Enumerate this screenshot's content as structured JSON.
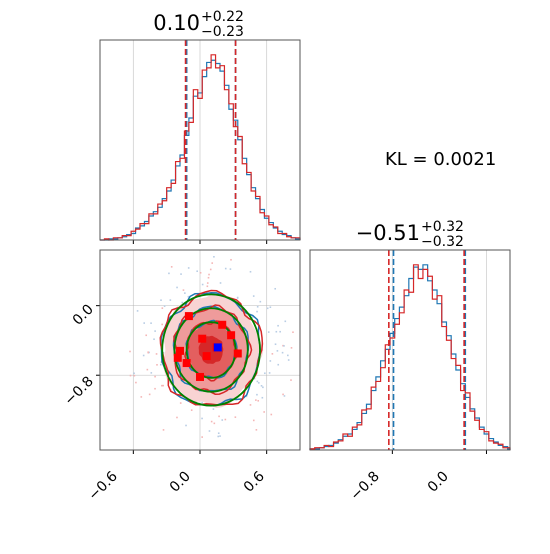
{
  "figure": {
    "kl_text": "KL = 0.0021"
  },
  "colors": {
    "blue_series": "#1f77b4",
    "red_series": "#d62728",
    "green_contour": "#008000",
    "grid": "#b0b0b0"
  },
  "chart_data": [
    {
      "type": "histogram",
      "panel": "marginal-param-1",
      "title_value": "0.10",
      "title_upper": "+0.22",
      "title_lower": "−0.23",
      "xlim": [
        -0.9,
        0.9
      ],
      "grid": true,
      "quantile_lines": {
        "red": [
          -0.13,
          0.1,
          0.32
        ],
        "blue": [
          -0.12,
          0.1,
          0.32
        ]
      },
      "bins": [
        -0.9,
        -0.86,
        -0.82,
        -0.78,
        -0.74,
        -0.7,
        -0.66,
        -0.62,
        -0.58,
        -0.54,
        -0.5,
        -0.46,
        -0.42,
        -0.38,
        -0.34,
        -0.3,
        -0.26,
        -0.22,
        -0.18,
        -0.14,
        -0.1,
        -0.06,
        -0.02,
        0.02,
        0.06,
        0.1,
        0.14,
        0.18,
        0.22,
        0.26,
        0.3,
        0.34,
        0.38,
        0.42,
        0.46,
        0.5,
        0.54,
        0.58,
        0.62,
        0.66,
        0.7,
        0.74,
        0.78,
        0.82,
        0.86,
        0.9
      ],
      "series": [
        {
          "color": "#1f77b4",
          "counts": [
            0,
            0,
            1,
            1,
            2,
            3,
            5,
            6,
            11,
            13,
            17,
            22,
            26,
            30,
            38,
            45,
            55,
            68,
            78,
            96,
            112,
            132,
            135,
            150,
            163,
            165,
            162,
            155,
            142,
            120,
            110,
            92,
            75,
            60,
            48,
            38,
            28,
            20,
            16,
            11,
            8,
            5,
            4,
            2,
            1
          ]
        },
        {
          "color": "#d62728",
          "counts": [
            0,
            1,
            0,
            2,
            2,
            4,
            4,
            8,
            10,
            15,
            15,
            24,
            24,
            33,
            36,
            48,
            52,
            72,
            75,
            100,
            108,
            138,
            130,
            156,
            158,
            170,
            158,
            160,
            138,
            125,
            104,
            95,
            70,
            62,
            45,
            40,
            25,
            22,
            14,
            12,
            6,
            6,
            3,
            2,
            2
          ]
        }
      ]
    },
    {
      "type": "contour",
      "panel": "joint-param-1-param-2",
      "xlim": [
        -0.9,
        0.9
      ],
      "ylim": [
        -1.66,
        0.64
      ],
      "grid": true,
      "x_ticks": [
        "−0.6",
        "0.0",
        "0.6"
      ],
      "y_ticks": [
        "0.0",
        "−0.8"
      ],
      "center": [
        0.1,
        -0.51
      ],
      "sigma": [
        0.22,
        0.32
      ],
      "level_scales": [
        0.5,
        1.0,
        1.5,
        2.0
      ],
      "fill_colors": [
        "#d62728",
        "#e35f5f",
        "#ef9b9b",
        "#f8d3d3"
      ],
      "red_markers": [
        [
          -0.1,
          -0.12
        ],
        [
          0.2,
          -0.22
        ],
        [
          0.02,
          -0.38
        ],
        [
          0.28,
          -0.34
        ],
        [
          -0.18,
          -0.52
        ],
        [
          0.06,
          -0.58
        ],
        [
          0.34,
          -0.55
        ],
        [
          -0.12,
          -0.66
        ],
        [
          0.15,
          -0.48
        ],
        [
          0.0,
          -0.82
        ],
        [
          -0.2,
          -0.6
        ]
      ],
      "blue_marker": [
        0.16,
        -0.48
      ]
    },
    {
      "type": "histogram",
      "panel": "marginal-param-2",
      "title_value": "−0.51",
      "title_upper": "+0.32",
      "title_lower": "−0.32",
      "xlim": [
        -1.5,
        0.2
      ],
      "grid": true,
      "x_ticks": [
        "−0.8",
        "0.0"
      ],
      "quantile_lines": {
        "red": [
          -0.83,
          -0.51,
          -0.19
        ],
        "blue": [
          -0.79,
          -0.51,
          -0.18
        ]
      },
      "bins": [
        -1.5,
        -1.46,
        -1.42,
        -1.38,
        -1.34,
        -1.3,
        -1.26,
        -1.22,
        -1.18,
        -1.14,
        -1.1,
        -1.06,
        -1.02,
        -0.98,
        -0.94,
        -0.9,
        -0.86,
        -0.82,
        -0.78,
        -0.74,
        -0.7,
        -0.66,
        -0.62,
        -0.58,
        -0.54,
        -0.5,
        -0.46,
        -0.42,
        -0.38,
        -0.34,
        -0.3,
        -0.26,
        -0.22,
        -0.18,
        -0.14,
        -0.1,
        -0.06,
        -0.02,
        0.02,
        0.06,
        0.1,
        0.14,
        0.18,
        0.2
      ],
      "series": [
        {
          "color": "#1f77b4",
          "counts": [
            1,
            1,
            2,
            3,
            4,
            6,
            9,
            12,
            14,
            18,
            24,
            32,
            40,
            52,
            64,
            78,
            88,
            102,
            115,
            125,
            135,
            150,
            160,
            158,
            162,
            148,
            140,
            128,
            112,
            100,
            84,
            70,
            58,
            46,
            36,
            28,
            20,
            14,
            10,
            7,
            4,
            3,
            1
          ]
        },
        {
          "color": "#d62728",
          "counts": [
            1,
            2,
            2,
            4,
            3,
            7,
            8,
            14,
            12,
            20,
            22,
            35,
            36,
            55,
            60,
            72,
            92,
            98,
            110,
            120,
            140,
            138,
            162,
            150,
            158,
            152,
            132,
            135,
            108,
            96,
            80,
            74,
            52,
            50,
            34,
            26,
            18,
            16,
            8,
            6,
            5,
            2,
            2
          ]
        }
      ]
    }
  ]
}
